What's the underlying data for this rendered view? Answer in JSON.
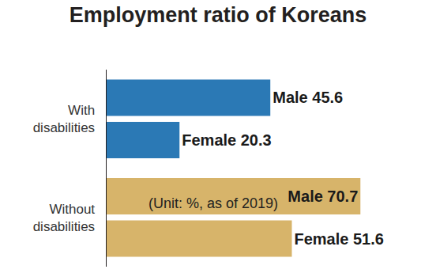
{
  "chart_data": {
    "type": "bar",
    "title": "Employment ratio of Koreans",
    "subtitle": "(Unit: %, as of 2019)",
    "orientation": "horizontal",
    "categories": [
      "With disabilities",
      "Without disabilities"
    ],
    "series": [
      {
        "name": "Male",
        "values": [
          45.6,
          70.7
        ],
        "value_labels": [
          "Male 45.6",
          "Male 70.7"
        ],
        "colors": [
          "#2b79b5",
          "#d7b46a"
        ]
      },
      {
        "name": "Female",
        "values": [
          20.3,
          51.6
        ],
        "value_labels": [
          "Female 20.3",
          "Female 51.6"
        ],
        "colors": [
          "#2b79b5",
          "#d7b46a"
        ]
      }
    ],
    "xlim": [
      0,
      90
    ],
    "data_labels": true,
    "tick_labels": "y",
    "grid": false
  }
}
